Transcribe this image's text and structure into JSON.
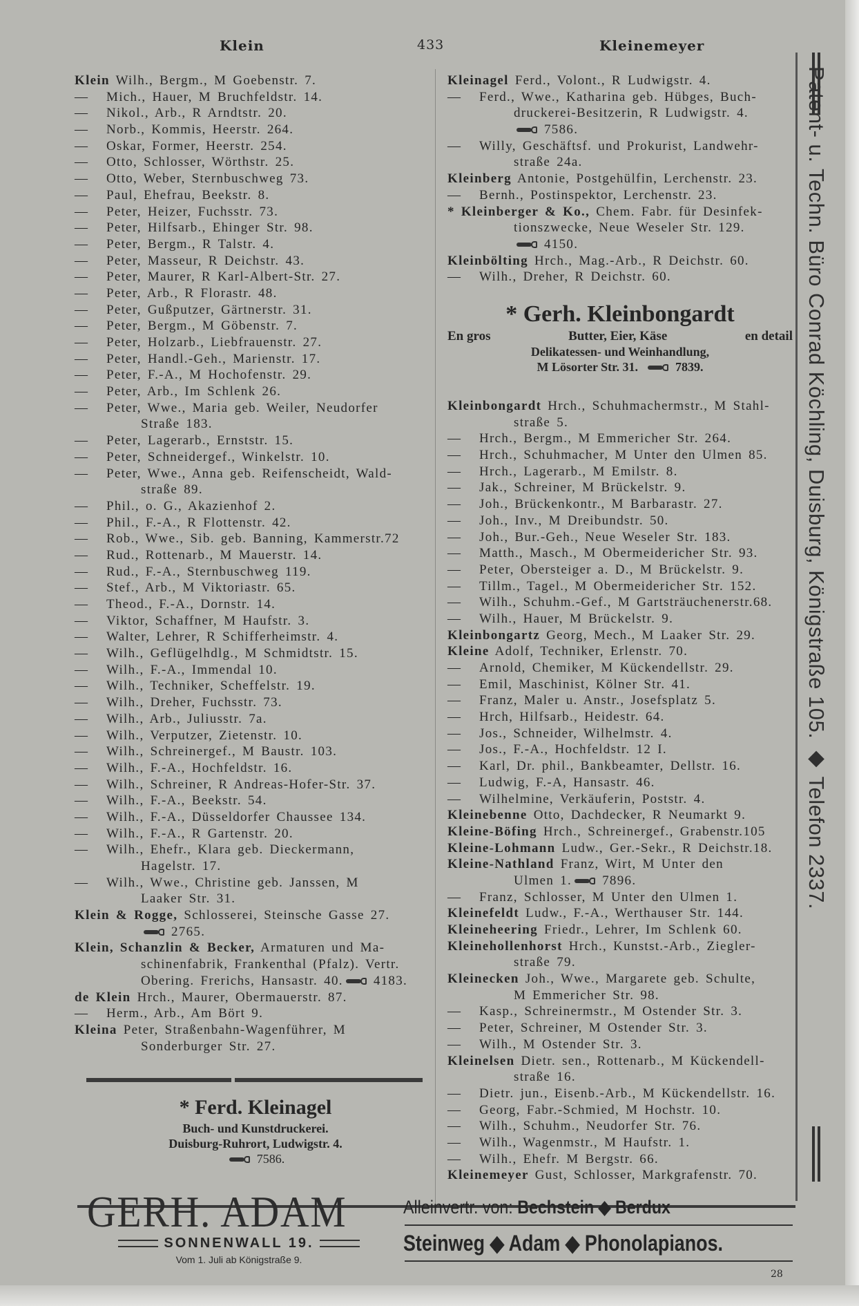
{
  "header": {
    "left": "Klein",
    "page_number": "433",
    "right": "Kleinemeyer"
  },
  "left": {
    "entries": [
      {
        "name": "Klein",
        "lines": [
          "Wilh., Bergm., M Goebenstr. 7."
        ]
      },
      {
        "dash": true,
        "lines": [
          "Mich., Hauer, M Bruchfeldstr. 14."
        ]
      },
      {
        "dash": true,
        "lines": [
          "Nikol., Arb., R Arndtstr. 20."
        ]
      },
      {
        "dash": true,
        "lines": [
          "Norb., Kommis, Heerstr. 264."
        ]
      },
      {
        "dash": true,
        "lines": [
          "Oskar, Former, Heerstr. 254."
        ]
      },
      {
        "dash": true,
        "lines": [
          "Otto, Schlosser, Wörthstr. 25."
        ]
      },
      {
        "dash": true,
        "lines": [
          "Otto, Weber, Sternbuschweg 73."
        ]
      },
      {
        "dash": true,
        "lines": [
          "Paul, Ehefrau, Beekstr. 8."
        ]
      },
      {
        "dash": true,
        "lines": [
          "Peter, Heizer, Fuchsstr. 73."
        ]
      },
      {
        "dash": true,
        "lines": [
          "Peter, Hilfsarb., Ehinger Str. 98."
        ]
      },
      {
        "dash": true,
        "lines": [
          "Peter, Bergm., R Talstr. 4."
        ]
      },
      {
        "dash": true,
        "lines": [
          "Peter, Masseur, R Deichstr. 43."
        ]
      },
      {
        "dash": true,
        "lines": [
          "Peter, Maurer, R Karl-Albert-Str. 27."
        ]
      },
      {
        "dash": true,
        "lines": [
          "Peter, Arb., R Florastr. 48."
        ]
      },
      {
        "dash": true,
        "lines": [
          "Peter, Gußputzer, Gärtnerstr. 31."
        ]
      },
      {
        "dash": true,
        "lines": [
          "Peter, Bergm., M Göbenstr. 7."
        ]
      },
      {
        "dash": true,
        "lines": [
          "Peter, Holzarb., Liebfrauenstr. 27."
        ]
      },
      {
        "dash": true,
        "lines": [
          "Peter, Handl.-Geh., Marienstr. 17."
        ]
      },
      {
        "dash": true,
        "lines": [
          "Peter, F.-A., M Hochofenstr. 29."
        ]
      },
      {
        "dash": true,
        "lines": [
          "Peter, Arb., Im Schlenk 26."
        ]
      },
      {
        "dash": true,
        "lines": [
          "Peter, Wwe., Maria geb. Weiler, Neudorfer",
          "Straße 183."
        ]
      },
      {
        "dash": true,
        "lines": [
          "Peter, Lagerarb., Ernststr. 15."
        ]
      },
      {
        "dash": true,
        "lines": [
          "Peter, Schneidergef., Winkelstr. 10."
        ]
      },
      {
        "dash": true,
        "lines": [
          "Peter, Wwe., Anna geb. Reifenscheidt, Wald-",
          "straße 89."
        ]
      },
      {
        "dash": true,
        "lines": [
          "Phil., o. G., Akazienhof 2."
        ]
      },
      {
        "dash": true,
        "lines": [
          "Phil., F.-A., R Flottenstr. 42."
        ]
      },
      {
        "dash": true,
        "lines": [
          "Rob., Wwe., Sib. geb. Banning, Kammerstr.72"
        ]
      },
      {
        "dash": true,
        "lines": [
          "Rud., Rottenarb., M Mauerstr. 14."
        ]
      },
      {
        "dash": true,
        "lines": [
          "Rud., F.-A., Sternbuschweg 119."
        ]
      },
      {
        "dash": true,
        "lines": [
          "Stef., Arb., M Viktoriastr. 65."
        ]
      },
      {
        "dash": true,
        "lines": [
          "Theod., F.-A., Dornstr. 14."
        ]
      },
      {
        "dash": true,
        "lines": [
          "Viktor, Schaffner, M Haufstr. 3."
        ]
      },
      {
        "dash": true,
        "lines": [
          "Walter, Lehrer, R Schifferheimstr. 4."
        ]
      },
      {
        "dash": true,
        "lines": [
          "Wilh., Geflügelhdlg., M Schmidtstr. 15."
        ]
      },
      {
        "dash": true,
        "lines": [
          "Wilh., F.-A., Immendal 10."
        ]
      },
      {
        "dash": true,
        "lines": [
          "Wilh., Techniker, Scheffelstr. 19."
        ]
      },
      {
        "dash": true,
        "lines": [
          "Wilh., Dreher, Fuchsstr. 73."
        ]
      },
      {
        "dash": true,
        "lines": [
          "Wilh., Arb., Juliusstr. 7a."
        ]
      },
      {
        "dash": true,
        "lines": [
          "Wilh., Verputzer, Zietenstr. 10."
        ]
      },
      {
        "dash": true,
        "lines": [
          "Wilh., Schreinergef., M Baustr. 103."
        ]
      },
      {
        "dash": true,
        "lines": [
          "Wilh., F.-A., Hochfeldstr. 16."
        ]
      },
      {
        "dash": true,
        "lines": [
          "Wilh., Schreiner, R Andreas-Hofer-Str. 37."
        ]
      },
      {
        "dash": true,
        "lines": [
          "Wilh., F.-A., Beekstr. 54."
        ]
      },
      {
        "dash": true,
        "lines": [
          "Wilh., F.-A., Düsseldorfer Chaussee 134."
        ]
      },
      {
        "dash": true,
        "lines": [
          "Wilh., F.-A., R Gartenstr. 20."
        ]
      },
      {
        "dash": true,
        "lines": [
          "Wilh., Ehefr., Klara geb. Dieckermann,",
          "Hagelstr. 17."
        ]
      },
      {
        "dash": true,
        "lines": [
          "Wilh., Wwe., Christine geb. Janssen, M",
          "Laaker Str. 31."
        ]
      },
      {
        "name": "Klein & Rogge,",
        "lines": [
          "Schlosserei, Steinsche Gasse 27.",
          {
            "text": "",
            "phone": "2765."
          }
        ]
      },
      {
        "name": "Klein, Schanzlin & Becker,",
        "lines": [
          "Armaturen und Ma-",
          "schinenfabrik, Frankenthal (Pfalz). Vertr.",
          {
            "text": "Obering. Frerichs, Hansastr. 40.",
            "phone": "4183."
          }
        ]
      },
      {
        "name": "de Klein",
        "lines": [
          "Hrch., Maurer, Obermauerstr. 87."
        ]
      },
      {
        "dash": true,
        "lines": [
          "Herm., Arb., Am Bört 9."
        ]
      },
      {
        "name": "Kleina",
        "lines": [
          "Peter, Straßenbahn-Wagenführer, M",
          "Sonderburger Str. 27."
        ]
      }
    ],
    "ad": {
      "title": "* Ferd. Kleinagel",
      "line1": "Buch- und Kunstdruckerei.",
      "line2": "Duisburg-Ruhrort, Ludwigstr. 4.",
      "phone": "7586."
    }
  },
  "right": {
    "entries_top": [
      {
        "name": "Kleinagel",
        "lines": [
          "Ferd., Volont., R Ludwigstr. 4."
        ]
      },
      {
        "dash": true,
        "lines": [
          "Ferd., Wwe., Katharina geb. Hübges, Buch-",
          "druckerei-Besitzerin, R Ludwigstr. 4.",
          {
            "text": "",
            "phone": "7586."
          }
        ]
      },
      {
        "dash": true,
        "lines": [
          "Willy, Geschäftsf. und Prokurist, Landwehr-",
          "straße 24a."
        ]
      },
      {
        "name": "Kleinberg",
        "lines": [
          "Antonie, Postgehülfin, Lerchenstr. 23."
        ]
      },
      {
        "dash": true,
        "lines": [
          "Bernh., Postinspektor, Lerchenstr. 23."
        ]
      },
      {
        "name": "* Kleinberger & Ko.,",
        "lines": [
          "Chem. Fabr. für Desinfek-",
          "tionszwecke, Neue Weseler Str. 129.",
          {
            "text": "",
            "phone": "4150."
          }
        ]
      },
      {
        "name": "Kleinbölting",
        "lines": [
          "Hrch., Mag.-Arb., R Deichstr. 60."
        ]
      },
      {
        "dash": true,
        "lines": [
          "Wilh., Dreher, R Deichstr. 60."
        ]
      }
    ],
    "ad": {
      "title": "* Gerh. Kleinbongardt",
      "left": "En gros",
      "middle": "Butter, Eier, Käse",
      "right": "en detail",
      "line2": "Delikatessen- und Weinhandlung,",
      "line3": "M Lösorter Str. 31.",
      "phone": "7839."
    },
    "entries": [
      {
        "name": "Kleinbongardt",
        "lines": [
          "Hrch., Schuhmachermstr., M Stahl-",
          "straße 5."
        ]
      },
      {
        "dash": true,
        "lines": [
          "Hrch., Bergm., M Emmericher Str. 264."
        ]
      },
      {
        "dash": true,
        "lines": [
          "Hrch., Schuhmacher, M Unter den Ulmen 85."
        ]
      },
      {
        "dash": true,
        "lines": [
          "Hrch., Lagerarb., M Emilstr. 8."
        ]
      },
      {
        "dash": true,
        "lines": [
          "Jak., Schreiner, M Brückelstr. 9."
        ]
      },
      {
        "dash": true,
        "lines": [
          "Joh., Brückenkontr., M Barbarastr. 27."
        ]
      },
      {
        "dash": true,
        "lines": [
          "Joh., Inv., M Dreibundstr. 50."
        ]
      },
      {
        "dash": true,
        "lines": [
          "Joh., Bur.-Geh., Neue Weseler Str. 183."
        ]
      },
      {
        "dash": true,
        "lines": [
          "Matth., Masch., M Obermeidericher Str. 93."
        ]
      },
      {
        "dash": true,
        "lines": [
          "Peter, Obersteiger a. D., M Brückelstr. 9."
        ]
      },
      {
        "dash": true,
        "lines": [
          "Tillm., Tagel., M Obermeidericher Str. 152."
        ]
      },
      {
        "dash": true,
        "lines": [
          "Wilh., Schuhm.-Gef., M Gartsträuchenerstr.68."
        ]
      },
      {
        "dash": true,
        "lines": [
          "Wilh., Hauer, M Brückelstr. 9."
        ]
      },
      {
        "name": "Kleinbongartz",
        "lines": [
          "Georg, Mech., M Laaker Str. 29."
        ]
      },
      {
        "name": "Kleine",
        "lines": [
          "Adolf, Techniker, Erlenstr. 70."
        ]
      },
      {
        "dash": true,
        "lines": [
          "Arnold, Chemiker, M Kückendellstr. 29."
        ]
      },
      {
        "dash": true,
        "lines": [
          "Emil, Maschinist, Kölner Str. 41."
        ]
      },
      {
        "dash": true,
        "lines": [
          "Franz, Maler u. Anstr., Josefsplatz 5."
        ]
      },
      {
        "dash": true,
        "lines": [
          "Hrch, Hilfsarb., Heidestr. 64."
        ]
      },
      {
        "dash": true,
        "lines": [
          "Jos., Schneider, Wilhelmstr. 4."
        ]
      },
      {
        "dash": true,
        "lines": [
          "Jos., F.-A., Hochfeldstr. 12 I."
        ]
      },
      {
        "dash": true,
        "lines": [
          "Karl, Dr. phil., Bankbeamter, Dellstr. 16."
        ]
      },
      {
        "dash": true,
        "lines": [
          "Ludwig, F.-A, Hansastr. 46."
        ]
      },
      {
        "dash": true,
        "lines": [
          "Wilhelmine, Verkäuferin, Poststr. 4."
        ]
      },
      {
        "name": "Kleinebenne",
        "lines": [
          "Otto, Dachdecker, R Neumarkt 9."
        ]
      },
      {
        "name": "Kleine-Böfing",
        "lines": [
          "Hrch., Schreinergef., Grabenstr.105"
        ]
      },
      {
        "name": "Kleine-Lohmann",
        "lines": [
          "Ludw., Ger.-Sekr., R Deichstr.18."
        ]
      },
      {
        "name": "Kleine-Nathland",
        "lines": [
          "Franz, Wirt, M Unter den",
          {
            "text": "Ulmen 1.",
            "phone": "7896."
          }
        ]
      },
      {
        "dash": true,
        "lines": [
          "Franz, Schlosser, M Unter den Ulmen 1."
        ]
      },
      {
        "name": "Kleinefeldt",
        "lines": [
          "Ludw., F.-A., Werthauser Str. 144."
        ]
      },
      {
        "name": "Kleineheering",
        "lines": [
          "Friedr., Lehrer, Im Schlenk 60."
        ]
      },
      {
        "name": "Kleinehollenhorst",
        "lines": [
          "Hrch., Kunstst.-Arb., Ziegler-",
          "straße 79."
        ]
      },
      {
        "name": "Kleinecken",
        "lines": [
          "Joh., Wwe., Margarete geb. Schulte,",
          "M Emmericher Str. 98."
        ]
      },
      {
        "dash": true,
        "lines": [
          "Kasp., Schreinermstr., M Ostender Str. 3."
        ]
      },
      {
        "dash": true,
        "lines": [
          "Peter, Schreiner, M Ostender Str. 3."
        ]
      },
      {
        "dash": true,
        "lines": [
          "Wilh., M Ostender Str. 3."
        ]
      },
      {
        "name": "Kleinelsen",
        "lines": [
          "Dietr. sen., Rottenarb., M Kückendell-",
          "straße 16."
        ]
      },
      {
        "dash": true,
        "lines": [
          "Dietr. jun., Eisenb.-Arb., M Kückendellstr. 16."
        ]
      },
      {
        "dash": true,
        "lines": [
          "Georg, Fabr.-Schmied, M Hochstr. 10."
        ]
      },
      {
        "dash": true,
        "lines": [
          "Wilh., Schuhm., Neudorfer Str. 76."
        ]
      },
      {
        "dash": true,
        "lines": [
          "Wilh., Wagenmstr., M Haufstr. 1."
        ]
      },
      {
        "dash": true,
        "lines": [
          "Wilh., Ehefr. M Bergstr. 66."
        ]
      },
      {
        "name": "Kleinemeyer",
        "lines": [
          "Gust, Schlosser, Markgrafenstr. 70."
        ]
      }
    ]
  },
  "sidebar": {
    "text": "Patent- u. Techn. Büro Conrad Köchling, Duisburg, Königstraße 105. ◆ Telefon 2337."
  },
  "footer_ad": {
    "name": "GERH. ADAM",
    "address": "SONNENWALL 19.",
    "note": "Vom 1. Juli ab Königstraße 9.",
    "line1_prefix": "Alleinvertr. von:",
    "line1_brands": "Bechstein ◆ Berdux",
    "line2": "Steinweg ◆ Adam ◆ Phonolapianos."
  },
  "footer_page": "28",
  "dash_glyph": "—"
}
